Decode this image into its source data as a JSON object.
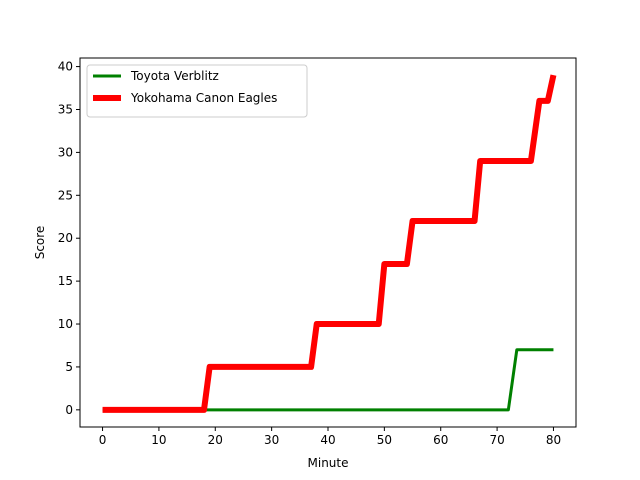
{
  "chart_data": {
    "type": "line",
    "title": "",
    "xlabel": "Minute",
    "ylabel": "Score",
    "xlim": [
      -4,
      84
    ],
    "ylim": [
      -2,
      41
    ],
    "xticks": [
      0,
      10,
      20,
      30,
      40,
      50,
      60,
      70,
      80
    ],
    "yticks": [
      0,
      5,
      10,
      15,
      20,
      25,
      30,
      35,
      40
    ],
    "grid": false,
    "legend_position": "upper-left",
    "series": [
      {
        "name": "Toyota Verblitz",
        "color": "#008000",
        "x": [
          0,
          72,
          73.5,
          80
        ],
        "y": [
          0,
          0,
          7,
          7
        ]
      },
      {
        "name": "Yokohama Canon Eagles",
        "color": "#ff0000",
        "x": [
          0,
          18,
          19,
          37,
          38,
          49,
          50,
          54,
          55,
          66,
          67,
          76,
          77.5,
          79,
          80
        ],
        "y": [
          0,
          0,
          5,
          5,
          10,
          10,
          17,
          17,
          22,
          22,
          29,
          29,
          36,
          36,
          39
        ]
      }
    ]
  }
}
